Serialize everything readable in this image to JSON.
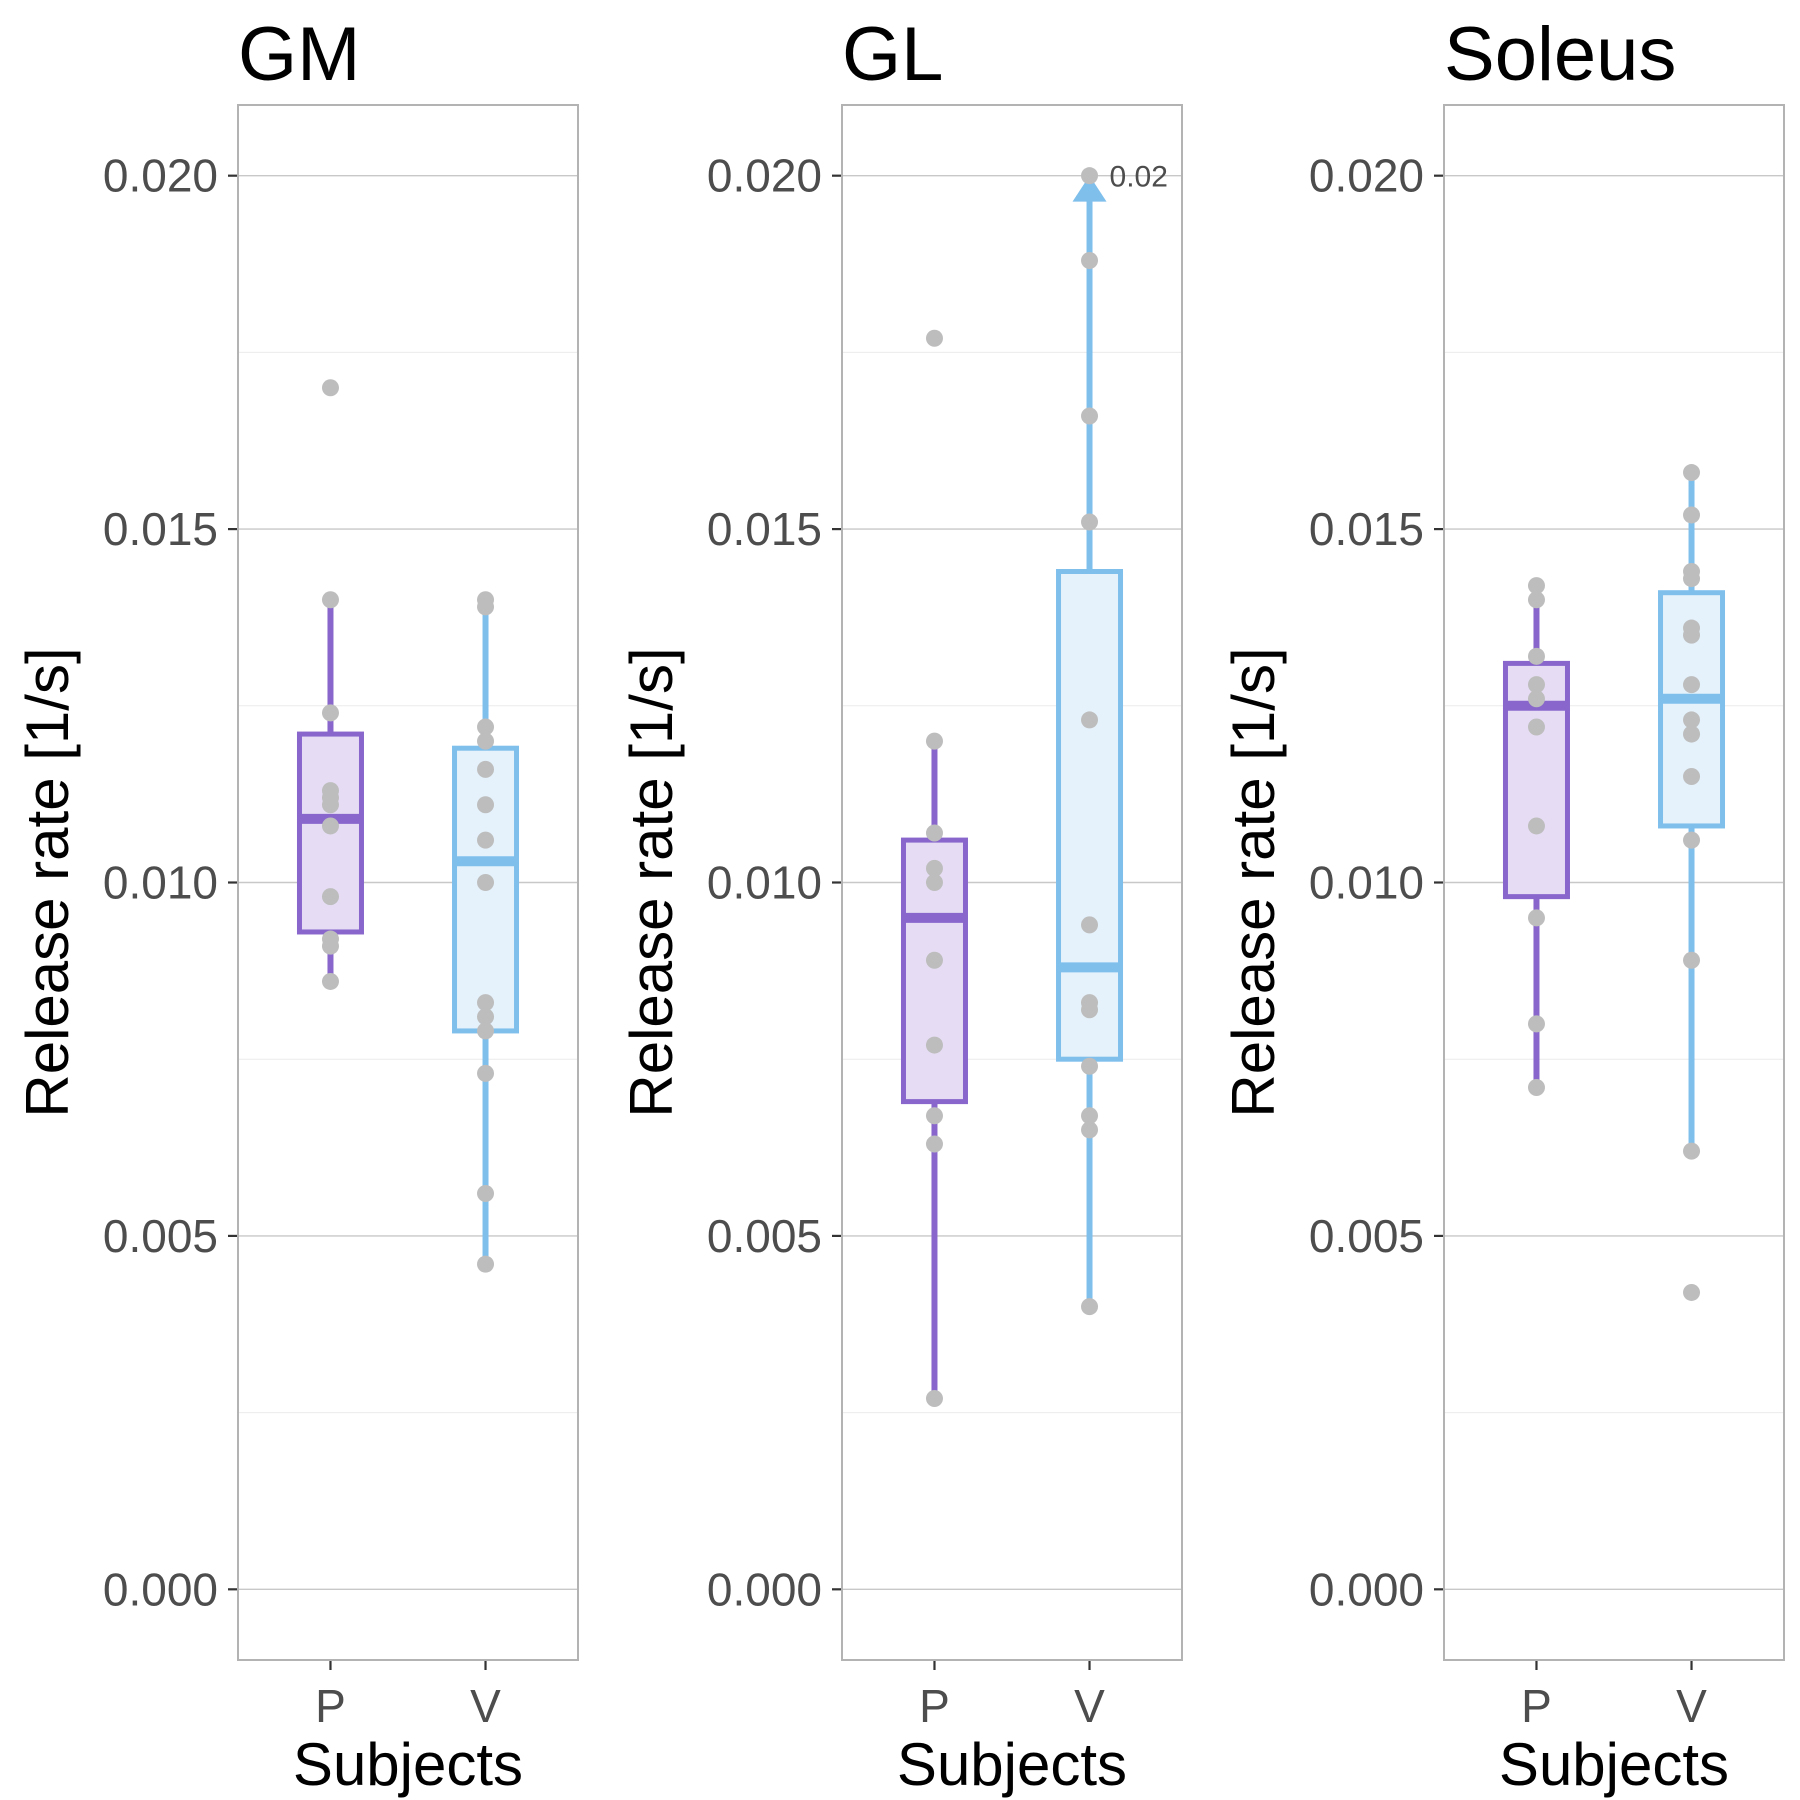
{
  "chart_data": {
    "type": "box",
    "shared": {
      "ylabel": "Release rate [1/s]",
      "xlabel": "Subjects",
      "ylim": [
        -0.001,
        0.021
      ],
      "yticks": [
        "0.000",
        "0.005",
        "0.010",
        "0.015",
        "0.020"
      ],
      "categories": [
        "P",
        "V"
      ],
      "colors": {
        "P": "#8866cc",
        "V": "#7fbfec"
      },
      "fills": {
        "P": "#e6ddf4",
        "V": "#e5f2fb"
      },
      "point_color": "#bdbdbd",
      "grid": true
    },
    "panels": [
      {
        "title": "GM",
        "boxes": [
          {
            "category": "P",
            "whisker_low": 0.0087,
            "q1": 0.0093,
            "median": 0.0109,
            "q3": 0.0121,
            "whisker_high": 0.014,
            "points": [
              0.017,
              0.014,
              0.0124,
              0.0113,
              0.0112,
              0.0111,
              0.0108,
              0.0098,
              0.0092,
              0.0091,
              0.0086
            ]
          },
          {
            "category": "V",
            "whisker_low": 0.0047,
            "q1": 0.0079,
            "median": 0.0103,
            "q3": 0.0119,
            "whisker_high": 0.014,
            "points": [
              0.014,
              0.0139,
              0.0122,
              0.012,
              0.0116,
              0.0111,
              0.0106,
              0.01,
              0.0083,
              0.0081,
              0.0079,
              0.0073,
              0.0056,
              0.0046
            ]
          }
        ]
      },
      {
        "title": "GL",
        "annotation": "0.02",
        "boxes": [
          {
            "category": "P",
            "whisker_low": 0.0027,
            "q1": 0.0069,
            "median": 0.0095,
            "q3": 0.0106,
            "whisker_high": 0.012,
            "points": [
              0.0177,
              0.012,
              0.0107,
              0.0102,
              0.01,
              0.0089,
              0.0077,
              0.0067,
              0.0063,
              0.0027
            ]
          },
          {
            "category": "V",
            "whisker_low": 0.004,
            "q1": 0.0075,
            "median": 0.0088,
            "q3": 0.0144,
            "whisker_high": 0.02,
            "points": [
              0.02,
              0.0188,
              0.0166,
              0.0151,
              0.0123,
              0.0094,
              0.0083,
              0.0082,
              0.0074,
              0.0067,
              0.0065,
              0.004
            ]
          }
        ]
      },
      {
        "title": "Soleus",
        "boxes": [
          {
            "category": "P",
            "whisker_low": 0.0071,
            "q1": 0.0098,
            "median": 0.0125,
            "q3": 0.0131,
            "whisker_high": 0.0142,
            "points": [
              0.0142,
              0.014,
              0.0132,
              0.0128,
              0.0126,
              0.0122,
              0.0108,
              0.0095,
              0.008,
              0.0071
            ]
          },
          {
            "category": "V",
            "whisker_low": 0.0062,
            "q1": 0.0108,
            "median": 0.0126,
            "q3": 0.0141,
            "whisker_high": 0.0158,
            "points": [
              0.0158,
              0.0152,
              0.0144,
              0.0143,
              0.0136,
              0.0135,
              0.0128,
              0.0123,
              0.0121,
              0.0115,
              0.0106,
              0.0089,
              0.0062,
              0.0042
            ]
          }
        ]
      }
    ]
  }
}
